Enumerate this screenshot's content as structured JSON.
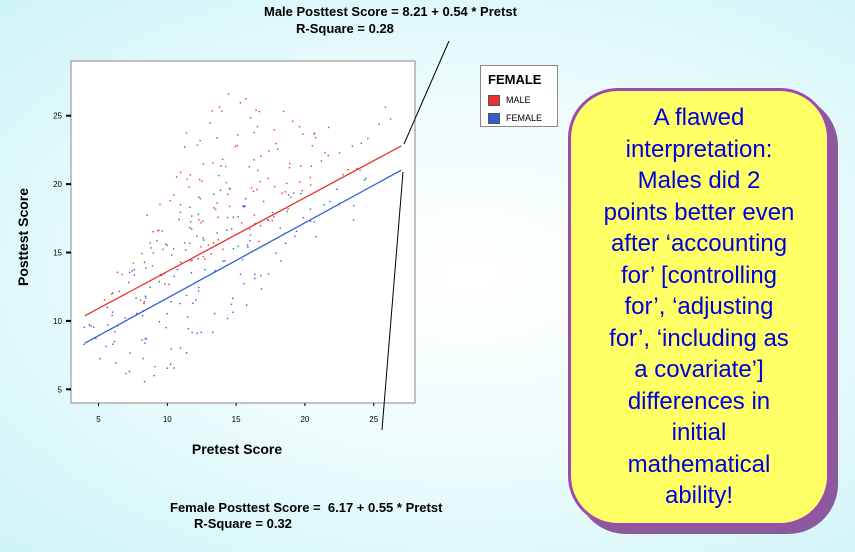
{
  "annotations": {
    "male_equation": "Male Posttest Score = 8.21 + 0.54 * Pretst",
    "male_r2": "R-Square = 0.28",
    "female_equation": "Female Posttest Score =  6.17 + 0.55 * Pretst",
    "female_r2": "R-Square = 0.32"
  },
  "legend": {
    "title": "FEMALE",
    "items": [
      {
        "label": "MALE",
        "color": "#e83030"
      },
      {
        "label": "FEMALE",
        "color": "#3060d0"
      }
    ]
  },
  "callout": {
    "lines": [
      "A flawed",
      "interpretation:",
      "Males did 2",
      "points better even",
      "after ‘accounting",
      "for’ [controlling",
      "for’, ‘adjusting",
      "for’, ‘including as",
      "a covariate’]",
      "differences in",
      "initial",
      "mathematical",
      "ability!"
    ],
    "text_color": "#0000dd",
    "fill_color": "#ffff66",
    "border_color": "#a04ab0"
  },
  "chart_data": {
    "type": "scatter",
    "xlabel": "Pretest Score",
    "ylabel": "Posttest Score",
    "xlim": [
      3,
      28
    ],
    "ylim": [
      4,
      29
    ],
    "x_ticks": [
      5,
      10,
      15,
      20,
      25
    ],
    "y_ticks": [
      5,
      10,
      15,
      20,
      25
    ],
    "grid": false,
    "legend_position": "top-right",
    "series": [
      {
        "name": "MALE",
        "color": "#e83030",
        "fit": {
          "intercept": 8.21,
          "slope": 0.54,
          "x_range": [
            4,
            27
          ]
        },
        "points": [
          [
            6,
            12
          ],
          [
            7,
            13
          ],
          [
            8,
            12
          ],
          [
            8,
            15
          ],
          [
            9,
            14
          ],
          [
            9,
            17
          ],
          [
            10,
            13
          ],
          [
            10,
            16
          ],
          [
            10,
            19
          ],
          [
            11,
            15
          ],
          [
            11,
            18
          ],
          [
            11,
            21
          ],
          [
            12,
            14
          ],
          [
            12,
            17
          ],
          [
            12,
            20
          ],
          [
            12,
            23
          ],
          [
            13,
            15
          ],
          [
            13,
            18
          ],
          [
            13,
            21
          ],
          [
            13,
            24
          ],
          [
            14,
            16
          ],
          [
            14,
            19
          ],
          [
            14,
            22
          ],
          [
            14,
            25
          ],
          [
            15,
            17
          ],
          [
            15,
            20
          ],
          [
            15,
            23
          ],
          [
            15,
            26
          ],
          [
            16,
            16
          ],
          [
            16,
            19
          ],
          [
            16,
            22
          ],
          [
            16,
            25
          ],
          [
            17,
            18
          ],
          [
            17,
            21
          ],
          [
            17,
            24
          ],
          [
            18,
            17
          ],
          [
            18,
            20
          ],
          [
            18,
            23
          ],
          [
            19,
            19
          ],
          [
            19,
            22
          ],
          [
            19,
            25
          ],
          [
            20,
            20
          ],
          [
            20,
            23
          ],
          [
            21,
            21
          ],
          [
            21,
            24
          ],
          [
            22,
            22
          ],
          [
            23,
            21
          ],
          [
            24,
            23
          ],
          [
            26,
            25
          ]
        ]
      },
      {
        "name": "FEMALE",
        "color": "#3060d0",
        "fit": {
          "intercept": 6.17,
          "slope": 0.55,
          "x_range": [
            4,
            27
          ]
        },
        "points": [
          [
            4,
            9
          ],
          [
            5,
            10
          ],
          [
            5,
            8
          ],
          [
            6,
            11
          ],
          [
            6,
            9
          ],
          [
            7,
            7
          ],
          [
            7,
            10
          ],
          [
            7,
            13
          ],
          [
            8,
            8
          ],
          [
            8,
            11
          ],
          [
            8,
            14
          ],
          [
            9,
            6
          ],
          [
            9,
            9
          ],
          [
            9,
            12
          ],
          [
            9,
            15
          ],
          [
            10,
            7
          ],
          [
            10,
            10
          ],
          [
            10,
            13
          ],
          [
            10,
            16
          ],
          [
            11,
            8
          ],
          [
            11,
            11
          ],
          [
            11,
            14
          ],
          [
            11,
            17
          ],
          [
            12,
            9
          ],
          [
            12,
            12
          ],
          [
            12,
            15
          ],
          [
            12,
            18
          ],
          [
            13,
            10
          ],
          [
            13,
            13
          ],
          [
            13,
            16
          ],
          [
            13,
            19
          ],
          [
            14,
            11
          ],
          [
            14,
            14
          ],
          [
            14,
            17
          ],
          [
            14,
            20
          ],
          [
            15,
            12
          ],
          [
            15,
            15
          ],
          [
            15,
            18
          ],
          [
            16,
            13
          ],
          [
            16,
            16
          ],
          [
            16,
            19
          ],
          [
            17,
            14
          ],
          [
            17,
            17
          ],
          [
            18,
            15
          ],
          [
            18,
            18
          ],
          [
            19,
            16
          ],
          [
            19,
            19
          ],
          [
            20,
            17
          ],
          [
            21,
            18
          ],
          [
            22,
            19
          ],
          [
            23,
            18
          ],
          [
            24,
            21
          ]
        ]
      }
    ]
  }
}
